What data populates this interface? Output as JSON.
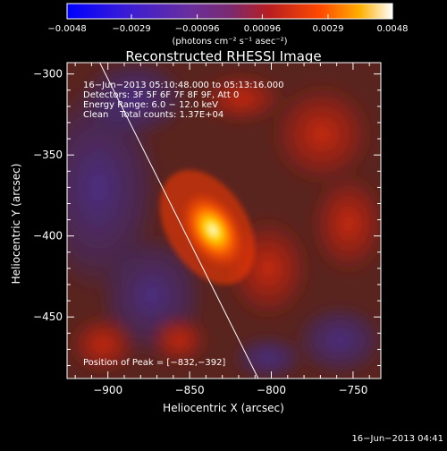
{
  "chart_data": {
    "type": "heatmap",
    "title": "Reconstructed RHESSI Image",
    "xlabel": "Heliocentric X (arcsec)",
    "ylabel": "Heliocentric Y (arcsec)",
    "xlim": [
      -925,
      -733
    ],
    "ylim": [
      -488,
      -293
    ],
    "x_ticks": [
      -900,
      -850,
      -800,
      -750
    ],
    "y_ticks": [
      -300,
      -350,
      -400,
      -450
    ],
    "x_tick_labels": [
      "−900",
      "−850",
      "−800",
      "−750"
    ],
    "y_tick_labels": [
      "−300",
      "−350",
      "−400",
      "−450"
    ],
    "colorbar": {
      "min": -0.0048,
      "max": 0.0048,
      "ticks": [
        -0.0048,
        -0.0029,
        -0.00096,
        0.00096,
        0.0029,
        0.0048
      ],
      "tick_labels": [
        "−0.0048",
        "−0.0029",
        "−0.00096",
        "0.00096",
        "0.0029",
        "0.0048"
      ],
      "unit_label": "(photons cm⁻² s⁻¹ asec⁻²)",
      "colormap": "blue-purple-red-yellow-white"
    },
    "annotations": [
      "16−Jun−2013 05:10:48.000 to 05:13:16.000",
      "Detectors: 3F 5F 6F 7F 8F 9F, Att 0",
      "Energy Range: 6.0 − 12.0 keV",
      "Clean    Total counts: 1.37E+04"
    ],
    "peak_label": "Position of Peak = [−832,−392]",
    "peak": [
      -832,
      -392
    ],
    "limb_line": [
      [
        -905,
        -293
      ],
      [
        -808,
        -488
      ]
    ],
    "timestamp": "16−Jun−2013 04:41",
    "grid": false
  }
}
